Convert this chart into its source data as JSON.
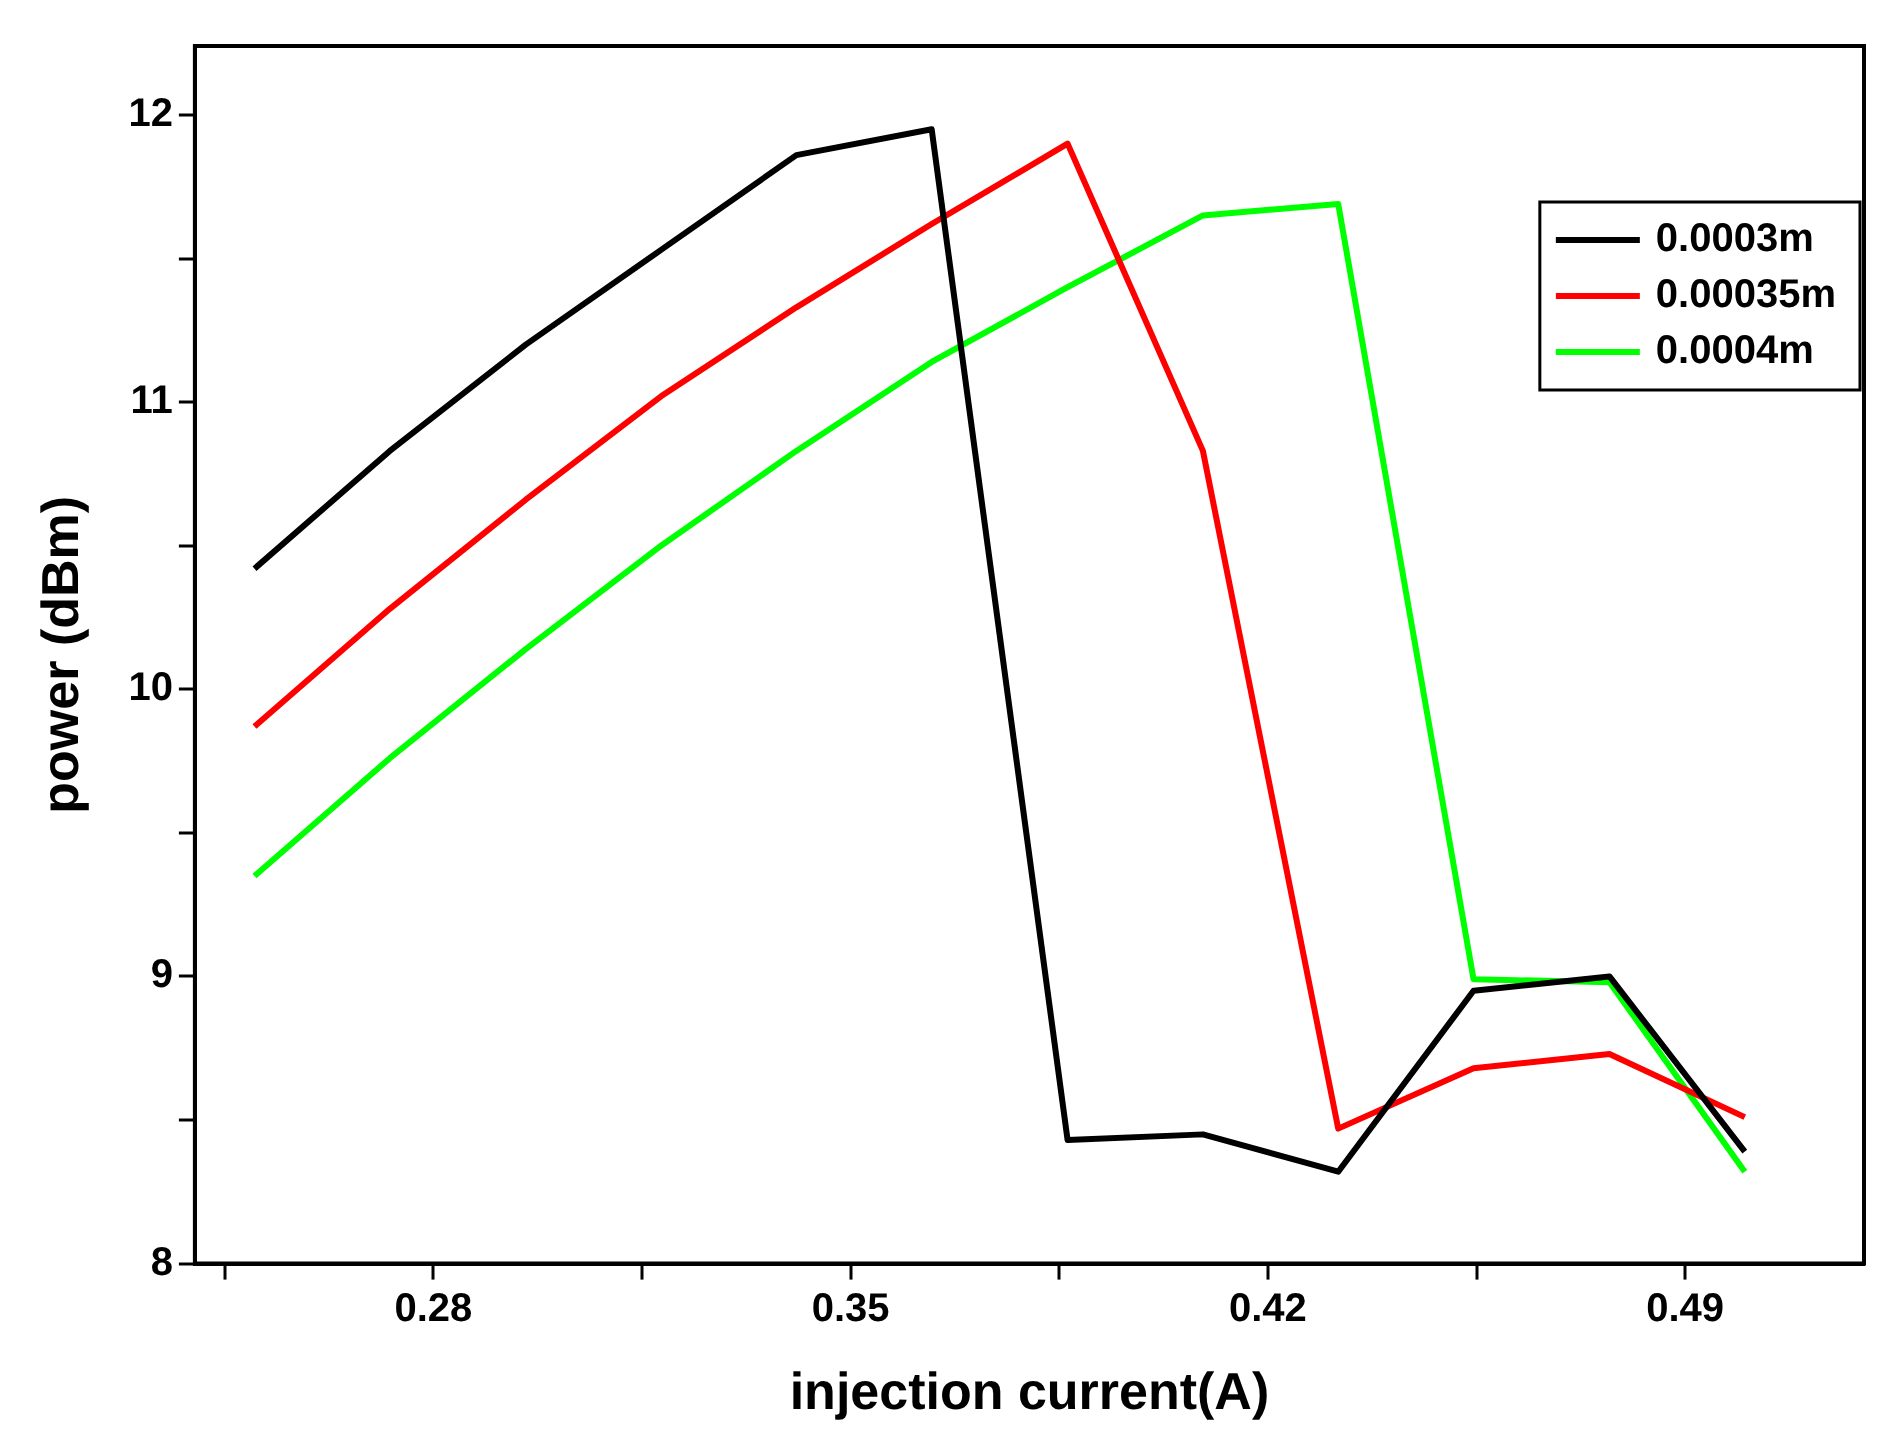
{
  "chart_data": {
    "type": "line",
    "xlabel": "injection current(A)",
    "ylabel": "power (dBm)",
    "x": [
      0.25,
      0.2727,
      0.2955,
      0.3182,
      0.3409,
      0.3636,
      0.3864,
      0.4091,
      0.4318,
      0.4545,
      0.4773,
      0.5
    ],
    "series": [
      {
        "name": "0.0003m",
        "color": "#000000",
        "values": [
          10.42,
          10.83,
          11.2,
          11.53,
          11.86,
          11.95,
          8.43,
          8.45,
          8.32,
          8.95,
          9.0,
          8.39
        ]
      },
      {
        "name": "0.00035m",
        "color": "#ff0000",
        "values": [
          9.87,
          10.28,
          10.66,
          11.02,
          11.33,
          11.62,
          11.9,
          10.83,
          8.47,
          8.68,
          8.73,
          8.51
        ]
      },
      {
        "name": "0.0004m",
        "color": "#00ff00",
        "values": [
          9.35,
          9.76,
          10.14,
          10.5,
          10.83,
          11.14,
          11.4,
          11.65,
          11.69,
          8.99,
          8.98,
          8.32
        ]
      }
    ],
    "xlim": [
      0.24,
      0.52
    ],
    "xticks": [
      {
        "value": 0.245,
        "label": null
      },
      0.28,
      {
        "value": 0.315,
        "label": null
      },
      0.35,
      {
        "value": 0.385,
        "label": null
      },
      0.42,
      {
        "value": 0.455,
        "label": null
      },
      0.49
    ],
    "ylim": [
      8,
      12.24
    ],
    "yticks": [
      8,
      {
        "value": 8.5,
        "label": null
      },
      9,
      {
        "value": 9.5,
        "label": null
      },
      10,
      {
        "value": 10.5,
        "label": null
      },
      11,
      {
        "value": 11.5,
        "label": null
      },
      12
    ],
    "grid": false,
    "legend": "top right",
    "marker": "none",
    "line_style": "solid"
  }
}
